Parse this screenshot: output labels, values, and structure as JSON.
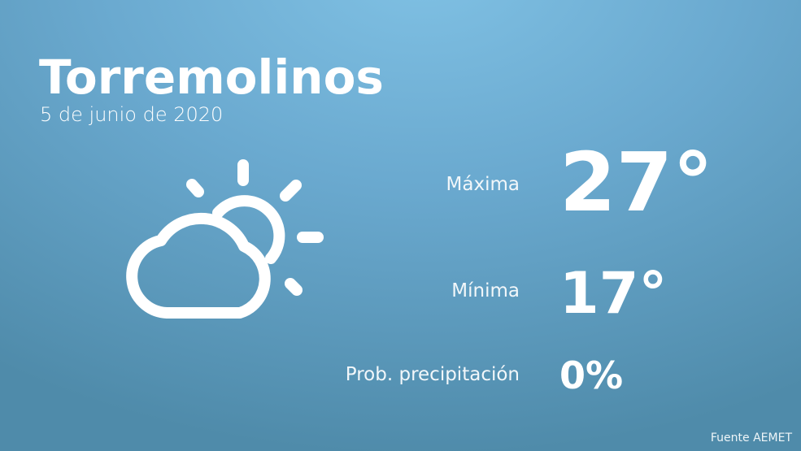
{
  "city": "Torremolinos",
  "date": "5 de junio de 2020",
  "weather_icon": "partly-cloudy-icon",
  "rows": [
    {
      "label": "Máxima",
      "value": "27°"
    },
    {
      "label": "Mínima",
      "value": "17°"
    },
    {
      "label": "Prob. precipitación",
      "value": "0%"
    }
  ],
  "source": "Fuente AEMET",
  "colors": {
    "background_top": "#80c1e4",
    "background_bottom": "#4f8baa",
    "text": "#ffffff"
  }
}
